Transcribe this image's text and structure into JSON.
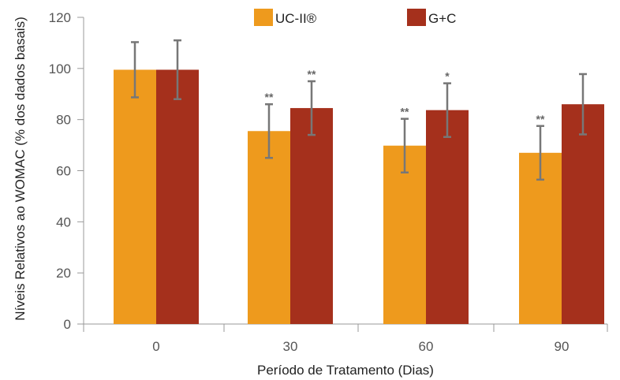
{
  "chart_data": {
    "type": "bar",
    "categories": [
      "0",
      "30",
      "60",
      "90"
    ],
    "series": [
      {
        "name": "UC-II®",
        "color": "#EE9A1D",
        "values": [
          99.5,
          75.5,
          69.8,
          67
        ],
        "errors": [
          10.8,
          10.5,
          10.5,
          10.5
        ],
        "significance": [
          "",
          "**",
          "**",
          "**"
        ]
      },
      {
        "name": "G+C",
        "color": "#A5301C",
        "values": [
          99.5,
          84.5,
          83.7,
          86
        ],
        "errors": [
          11.5,
          10.5,
          10.5,
          11.8
        ],
        "significance": [
          "",
          "**",
          "*",
          ""
        ]
      }
    ],
    "xlabel": "Período de Tratamento (Dias)",
    "ylabel": "Níveis Relativos ao WOMAC (% dos dados basais)",
    "ylim": [
      0,
      120
    ],
    "yticks": [
      "0",
      "20",
      "40",
      "60",
      "80",
      "100",
      "120"
    ],
    "grid": false,
    "legend_position": "top-center",
    "error_bar_color": "#777777",
    "axis_color": "#999999"
  }
}
